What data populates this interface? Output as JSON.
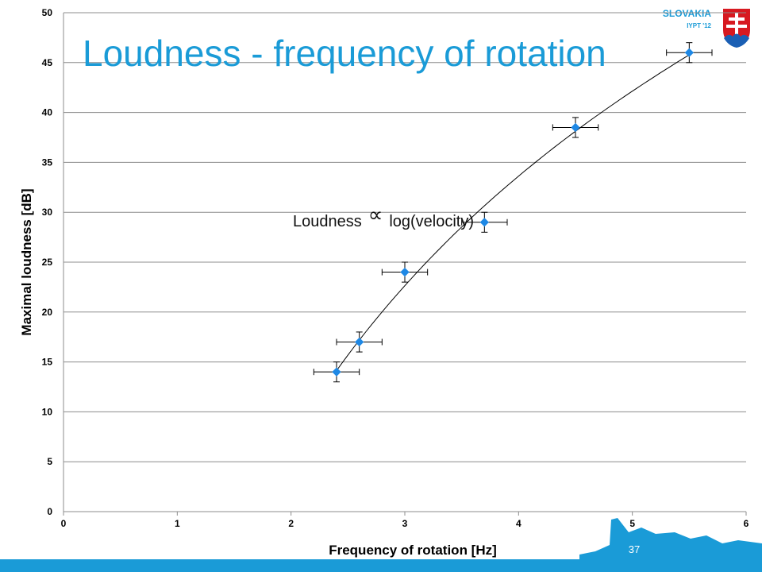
{
  "slide": {
    "title": "Loudness - frequency of rotation",
    "page_number": "37",
    "badge": {
      "country": "SLOVAKIA",
      "event": "IYPT '12"
    },
    "colors": {
      "accent": "#1a9bd7",
      "marker": "#1e88e5",
      "footer": "#1a9bd7"
    }
  },
  "annotation": {
    "left": "Loudness",
    "symbol": "∝",
    "right": "log(velocity)"
  },
  "chart_data": {
    "type": "scatter",
    "xlabel": "Frequency of rotation [Hz]",
    "ylabel": "Maximal loudness [dB]",
    "xlim": [
      0,
      6
    ],
    "ylim": [
      0,
      50
    ],
    "x_ticks": [
      0,
      1,
      2,
      3,
      4,
      5,
      6
    ],
    "y_ticks": [
      0,
      5,
      10,
      15,
      20,
      25,
      30,
      35,
      40,
      45,
      50
    ],
    "grid": "horizontal",
    "trendline": "logarithmic",
    "series": [
      {
        "points": [
          {
            "x": 2.4,
            "y": 14,
            "xerr": 0.2,
            "yerr": 1
          },
          {
            "x": 2.6,
            "y": 17,
            "xerr": 0.2,
            "yerr": 1
          },
          {
            "x": 3.0,
            "y": 24,
            "xerr": 0.2,
            "yerr": 1
          },
          {
            "x": 3.7,
            "y": 29,
            "xerr": 0.2,
            "yerr": 1
          },
          {
            "x": 4.5,
            "y": 38.5,
            "xerr": 0.2,
            "yerr": 1
          },
          {
            "x": 5.5,
            "y": 46,
            "xerr": 0.2,
            "yerr": 1
          }
        ]
      }
    ]
  }
}
